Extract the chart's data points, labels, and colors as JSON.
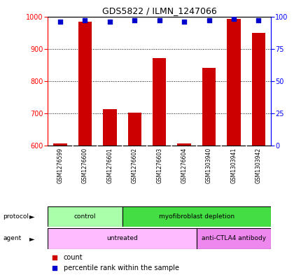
{
  "title": "GDS5822 / ILMN_1247066",
  "samples": [
    "GSM1276599",
    "GSM1276600",
    "GSM1276601",
    "GSM1276602",
    "GSM1276603",
    "GSM1276604",
    "GSM1303940",
    "GSM1303941",
    "GSM1303942"
  ],
  "counts": [
    607,
    984,
    714,
    702,
    872,
    607,
    840,
    993,
    950
  ],
  "percentile_ranks": [
    96,
    97,
    96,
    97,
    97,
    96,
    97,
    98,
    97
  ],
  "ylim_left": [
    600,
    1000
  ],
  "ylim_right": [
    0,
    100
  ],
  "yticks_left": [
    600,
    700,
    800,
    900,
    1000
  ],
  "yticks_right": [
    0,
    25,
    50,
    75,
    100
  ],
  "bar_color": "#cc0000",
  "dot_color": "#0000cc",
  "bar_bottom": 600,
  "protocol_groups": [
    {
      "label": "control",
      "start": 0,
      "end": 3,
      "color": "#aaffaa"
    },
    {
      "label": "myofibroblast depletion",
      "start": 3,
      "end": 9,
      "color": "#44dd44"
    }
  ],
  "agent_groups": [
    {
      "label": "untreated",
      "start": 0,
      "end": 6,
      "color": "#ffbbff"
    },
    {
      "label": "anti-CTLA4 antibody",
      "start": 6,
      "end": 9,
      "color": "#ee88ee"
    }
  ],
  "background_color": "#ffffff",
  "plot_bg_color": "#ffffff",
  "grid_color": "#000000",
  "sample_bg_color": "#cccccc"
}
